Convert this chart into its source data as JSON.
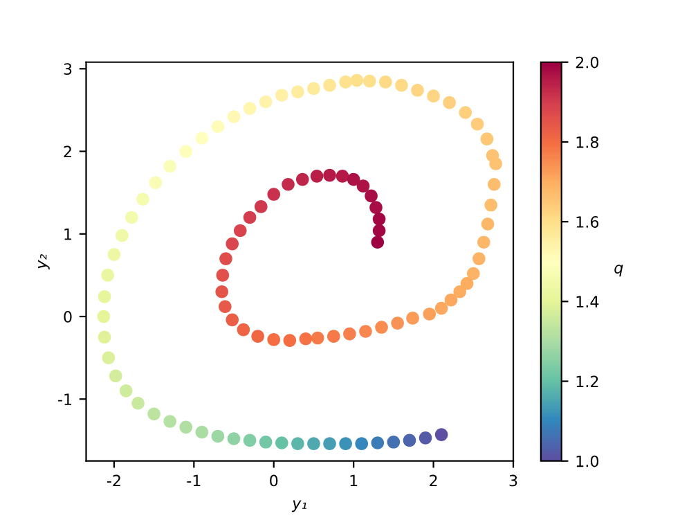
{
  "chart_data": {
    "type": "scatter",
    "xlabel": "y₁",
    "ylabel": "y₂",
    "clabel": "q",
    "clim": [
      1.0,
      2.0
    ],
    "cticks": [
      {
        "value": 1.0,
        "label": "1.0"
      },
      {
        "value": 1.2,
        "label": "1.2"
      },
      {
        "value": 1.4,
        "label": "1.4"
      },
      {
        "value": 1.6,
        "label": "1.6"
      },
      {
        "value": 1.8,
        "label": "1.8"
      },
      {
        "value": 2.0,
        "label": "2.0"
      }
    ],
    "xlim": [
      -2.35,
      3.0
    ],
    "ylim": [
      -1.75,
      3.08
    ],
    "xticks": [
      -2,
      -1,
      0,
      1,
      2,
      3
    ],
    "yticks": [
      -1,
      0,
      1,
      2,
      3
    ],
    "grid": false,
    "marker": "circle",
    "x": [
      2.1,
      1.9,
      1.7,
      1.5,
      1.3,
      1.1,
      0.9,
      0.7,
      0.5,
      0.3,
      0.1,
      -0.1,
      -0.3,
      -0.5,
      -0.7,
      -0.9,
      -1.1,
      -1.3,
      -1.5,
      -1.7,
      -1.85,
      -1.98,
      -2.07,
      -2.12,
      -2.13,
      -2.12,
      -2.08,
      -2.0,
      -1.9,
      -1.78,
      -1.64,
      -1.48,
      -1.3,
      -1.1,
      -0.9,
      -0.7,
      -0.5,
      -0.3,
      -0.1,
      0.1,
      0.3,
      0.5,
      0.7,
      0.9,
      1.04,
      1.2,
      1.4,
      1.6,
      1.8,
      2.0,
      2.2,
      2.4,
      2.55,
      2.67,
      2.74,
      2.78,
      2.76,
      2.72,
      2.68,
      2.63,
      2.57,
      2.5,
      2.42,
      2.33,
      2.22,
      2.1,
      1.95,
      1.74,
      1.55,
      1.35,
      1.15,
      0.95,
      0.75,
      0.55,
      0.4,
      0.2,
      0.0,
      -0.2,
      -0.38,
      -0.52,
      -0.61,
      -0.65,
      -0.64,
      -0.6,
      -0.52,
      -0.42,
      -0.3,
      -0.16,
      0.0,
      0.18,
      0.36,
      0.54,
      0.7,
      0.86,
      1.0,
      1.12,
      1.22,
      1.28,
      1.32,
      1.32,
      1.3
    ],
    "values": [
      -1.43,
      -1.47,
      -1.5,
      -1.52,
      -1.53,
      -1.54,
      -1.54,
      -1.54,
      -1.54,
      -1.54,
      -1.53,
      -1.52,
      -1.5,
      -1.48,
      -1.45,
      -1.4,
      -1.34,
      -1.27,
      -1.18,
      -1.05,
      -0.9,
      -0.72,
      -0.5,
      -0.25,
      0.0,
      0.24,
      0.5,
      0.75,
      0.98,
      1.2,
      1.42,
      1.62,
      1.82,
      2.0,
      2.16,
      2.3,
      2.42,
      2.52,
      2.6,
      2.68,
      2.72,
      2.76,
      2.8,
      2.84,
      2.86,
      2.85,
      2.84,
      2.8,
      2.74,
      2.67,
      2.59,
      2.47,
      2.33,
      2.15,
      1.95,
      1.85,
      1.6,
      1.35,
      1.12,
      0.9,
      0.7,
      0.52,
      0.4,
      0.3,
      0.2,
      0.1,
      0.03,
      -0.02,
      -0.08,
      -0.13,
      -0.18,
      -0.21,
      -0.24,
      -0.26,
      -0.27,
      -0.29,
      -0.28,
      -0.24,
      -0.16,
      -0.04,
      0.12,
      0.3,
      0.5,
      0.7,
      0.88,
      1.04,
      1.2,
      1.33,
      1.48,
      1.6,
      1.66,
      1.7,
      1.71,
      1.7,
      1.66,
      1.58,
      1.46,
      1.32,
      1.18,
      1.04,
      0.9
    ],
    "cvalues": [
      1.0,
      1.02,
      1.04,
      1.06,
      1.08,
      1.1,
      1.12,
      1.14,
      1.16,
      1.18,
      1.2,
      1.22,
      1.24,
      1.26,
      1.28,
      1.3,
      1.31,
      1.32,
      1.33,
      1.35,
      1.36,
      1.37,
      1.38,
      1.39,
      1.4,
      1.41,
      1.42,
      1.43,
      1.44,
      1.45,
      1.46,
      1.47,
      1.48,
      1.49,
      1.5,
      1.51,
      1.52,
      1.53,
      1.54,
      1.55,
      1.56,
      1.57,
      1.58,
      1.59,
      1.6,
      1.6,
      1.61,
      1.61,
      1.62,
      1.62,
      1.63,
      1.63,
      1.64,
      1.65,
      1.66,
      1.66,
      1.67,
      1.67,
      1.68,
      1.68,
      1.69,
      1.69,
      1.7,
      1.7,
      1.71,
      1.71,
      1.72,
      1.73,
      1.74,
      1.75,
      1.76,
      1.77,
      1.78,
      1.78,
      1.79,
      1.8,
      1.8,
      1.81,
      1.82,
      1.83,
      1.84,
      1.85,
      1.86,
      1.87,
      1.88,
      1.89,
      1.9,
      1.91,
      1.92,
      1.93,
      1.94,
      1.95,
      1.96,
      1.96,
      1.97,
      1.97,
      1.98,
      1.98,
      1.99,
      1.99,
      2.0
    ]
  }
}
